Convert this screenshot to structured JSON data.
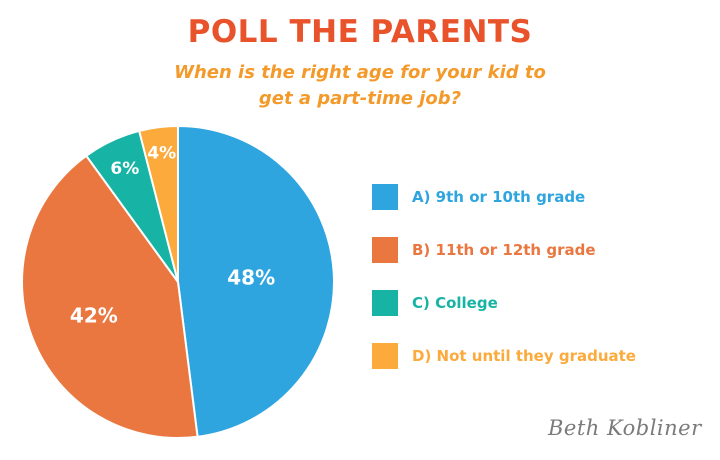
{
  "header": {
    "title": "POLL THE PARENTS",
    "subtitle_line1": "When is the right age for your kid to",
    "subtitle_line2": "get a part-time job?"
  },
  "chart_data": {
    "type": "pie",
    "categories": [
      "A) 9th or 10th grade",
      "B) 11th or 12th grade",
      "C) College",
      "D) Not until they graduate"
    ],
    "values": [
      48,
      42,
      6,
      4
    ],
    "labels": [
      "48%",
      "42%",
      "6%",
      "4%"
    ],
    "colors": [
      "#2fa5e0",
      "#ea7740",
      "#17b3a5",
      "#fbaa3b"
    ],
    "legend_placement": "right",
    "start_angle": "12 o'clock",
    "direction": "clockwise"
  },
  "signature": "Beth Kobliner"
}
